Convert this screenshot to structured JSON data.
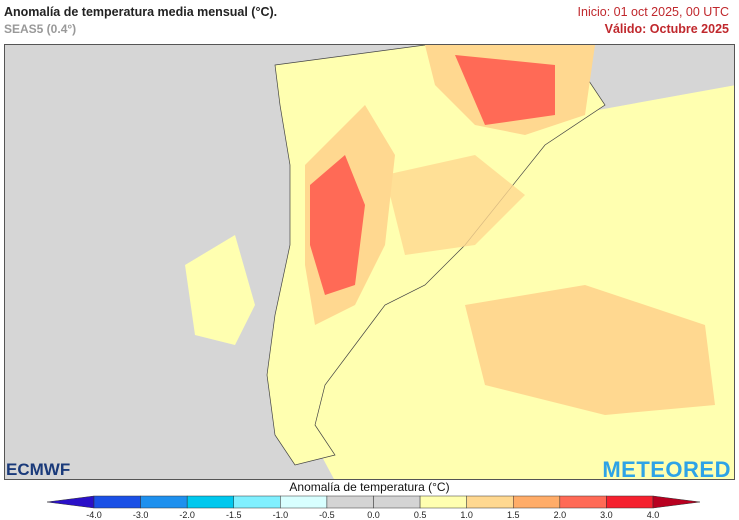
{
  "header": {
    "title": "Anomalía de temperatura media mensual (°C).",
    "model": "SEAS5 (0.4°)",
    "init": "Inicio: 01 oct 2025, 00 UTC",
    "valid": "Válido: Octubre 2025"
  },
  "logos": {
    "left": "ECMWF",
    "right": "METEORED"
  },
  "colorbar": {
    "title": "Anomalía de temperatura (°C)",
    "labels": [
      "-4.0",
      "-3.0",
      "-2.0",
      "-1.5",
      "-1.0",
      "-0.5",
      "0.0",
      "0.5",
      "1.0",
      "1.5",
      "2.0",
      "3.0",
      "4.0"
    ],
    "colors": [
      "#1a50e6",
      "#1e90ee",
      "#00c8ee",
      "#80f0ff",
      "#d8ffff",
      "#d4d4d4",
      "#d4d4d4",
      "#ffffb0",
      "#ffd890",
      "#ffac68",
      "#ff6a56",
      "#f5202e"
    ],
    "under_color": "#2a10c8",
    "over_color": "#b80020"
  }
}
